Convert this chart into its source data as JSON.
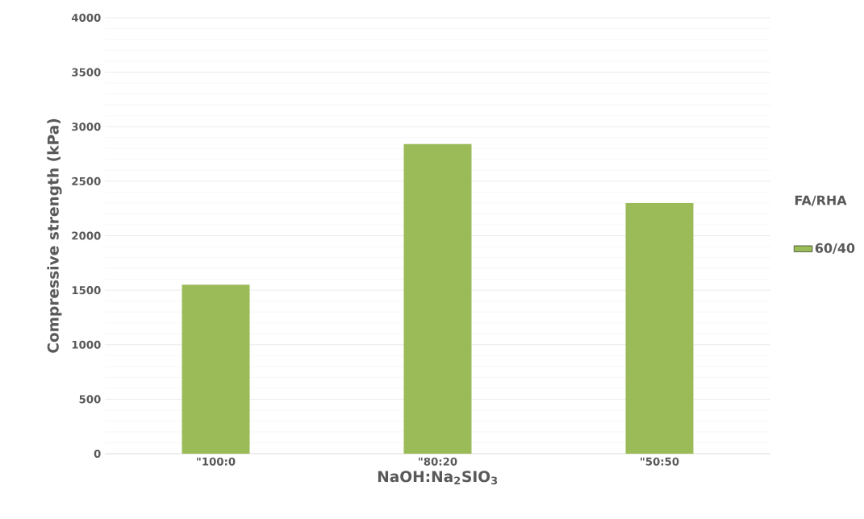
{
  "chart_data": {
    "type": "bar",
    "categories": [
      "\"100:0",
      "\"80:20",
      "\"50:50"
    ],
    "series": [
      {
        "name": "60/40",
        "color": "#9bbb59",
        "values": [
          1550,
          2840,
          2300
        ]
      }
    ],
    "xlabel": "NaOH:Na$_{2}$SIO$_{3}$",
    "ylabel": "Compressive strength (kPa)",
    "legend_title": "FA/RHA",
    "ylim": [
      0,
      4000
    ],
    "yticks": [
      0,
      500,
      1000,
      1500,
      2000,
      2500,
      3000,
      3500,
      4000
    ],
    "grid": "y",
    "legend": "right"
  }
}
